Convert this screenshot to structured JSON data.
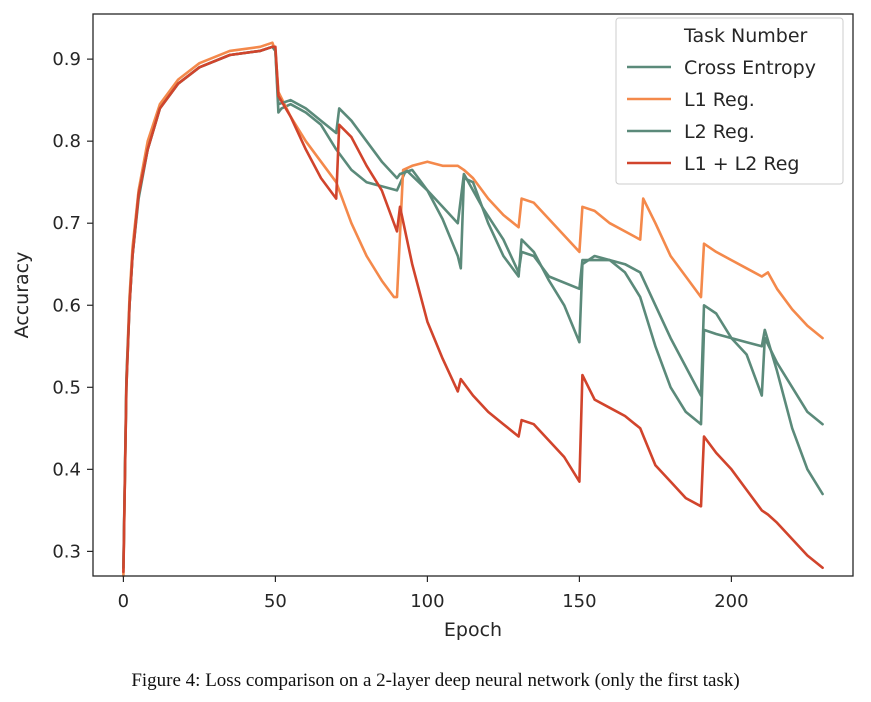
{
  "caption": "Figure 4: Loss comparison on a 2-layer deep neural network (only the first task)",
  "chart_data": {
    "type": "line",
    "title": "",
    "xlabel": "Epoch",
    "ylabel": "Accuracy",
    "xlim": [
      -10,
      240
    ],
    "ylim": [
      0.27,
      0.955
    ],
    "xticks": [
      0,
      50,
      100,
      150,
      200
    ],
    "yticks": [
      0.3,
      0.4,
      0.5,
      0.6,
      0.7,
      0.8,
      0.9
    ],
    "grid": false,
    "legend": {
      "placement": "top-right",
      "title": "Task Number"
    },
    "series": [
      {
        "name": "Cross Entropy",
        "color": "#5b8a7a",
        "points": [
          [
            0,
            0.28
          ],
          [
            1,
            0.5
          ],
          [
            2,
            0.6
          ],
          [
            3,
            0.66
          ],
          [
            5,
            0.73
          ],
          [
            8,
            0.79
          ],
          [
            12,
            0.84
          ],
          [
            18,
            0.87
          ],
          [
            25,
            0.89
          ],
          [
            35,
            0.905
          ],
          [
            45,
            0.91
          ],
          [
            49,
            0.915
          ],
          [
            50,
            0.91
          ],
          [
            51,
            0.835
          ],
          [
            52,
            0.84
          ],
          [
            55,
            0.845
          ],
          [
            60,
            0.835
          ],
          [
            65,
            0.82
          ],
          [
            70,
            0.79
          ],
          [
            75,
            0.765
          ],
          [
            80,
            0.75
          ],
          [
            90,
            0.74
          ],
          [
            93,
            0.765
          ],
          [
            100,
            0.74
          ],
          [
            105,
            0.72
          ],
          [
            110,
            0.7
          ],
          [
            112,
            0.76
          ],
          [
            118,
            0.72
          ],
          [
            125,
            0.68
          ],
          [
            130,
            0.64
          ],
          [
            131,
            0.665
          ],
          [
            135,
            0.66
          ],
          [
            140,
            0.635
          ],
          [
            150,
            0.62
          ],
          [
            151,
            0.655
          ],
          [
            160,
            0.655
          ],
          [
            165,
            0.65
          ],
          [
            170,
            0.64
          ],
          [
            175,
            0.6
          ],
          [
            180,
            0.56
          ],
          [
            190,
            0.49
          ],
          [
            191,
            0.6
          ],
          [
            195,
            0.59
          ],
          [
            200,
            0.56
          ],
          [
            205,
            0.54
          ],
          [
            210,
            0.49
          ],
          [
            211,
            0.56
          ],
          [
            215,
            0.53
          ],
          [
            220,
            0.5
          ],
          [
            225,
            0.47
          ],
          [
            230,
            0.455
          ]
        ]
      },
      {
        "name": "L1 Reg.",
        "color": "#f4894b",
        "points": [
          [
            0,
            0.27
          ],
          [
            1,
            0.51
          ],
          [
            2,
            0.61
          ],
          [
            3,
            0.67
          ],
          [
            5,
            0.74
          ],
          [
            8,
            0.8
          ],
          [
            12,
            0.845
          ],
          [
            18,
            0.875
          ],
          [
            25,
            0.895
          ],
          [
            35,
            0.91
          ],
          [
            45,
            0.915
          ],
          [
            49,
            0.92
          ],
          [
            50,
            0.91
          ],
          [
            51,
            0.86
          ],
          [
            55,
            0.83
          ],
          [
            60,
            0.8
          ],
          [
            65,
            0.775
          ],
          [
            70,
            0.75
          ],
          [
            75,
            0.7
          ],
          [
            80,
            0.66
          ],
          [
            85,
            0.63
          ],
          [
            89,
            0.61
          ],
          [
            90,
            0.61
          ],
          [
            92,
            0.765
          ],
          [
            95,
            0.77
          ],
          [
            100,
            0.775
          ],
          [
            105,
            0.77
          ],
          [
            110,
            0.77
          ],
          [
            112,
            0.765
          ],
          [
            115,
            0.755
          ],
          [
            120,
            0.73
          ],
          [
            125,
            0.71
          ],
          [
            130,
            0.695
          ],
          [
            131,
            0.73
          ],
          [
            135,
            0.725
          ],
          [
            140,
            0.705
          ],
          [
            145,
            0.685
          ],
          [
            150,
            0.665
          ],
          [
            151,
            0.72
          ],
          [
            155,
            0.715
          ],
          [
            160,
            0.7
          ],
          [
            165,
            0.69
          ],
          [
            170,
            0.68
          ],
          [
            171,
            0.73
          ],
          [
            175,
            0.7
          ],
          [
            180,
            0.66
          ],
          [
            185,
            0.635
          ],
          [
            190,
            0.61
          ],
          [
            191,
            0.675
          ],
          [
            195,
            0.665
          ],
          [
            200,
            0.655
          ],
          [
            205,
            0.645
          ],
          [
            210,
            0.635
          ],
          [
            212,
            0.64
          ],
          [
            215,
            0.62
          ],
          [
            220,
            0.595
          ],
          [
            225,
            0.575
          ],
          [
            230,
            0.56
          ]
        ]
      },
      {
        "name": "L2 Reg.",
        "color": "#5b8a7a",
        "points": [
          [
            0,
            0.28
          ],
          [
            1,
            0.51
          ],
          [
            2,
            0.6
          ],
          [
            3,
            0.66
          ],
          [
            5,
            0.735
          ],
          [
            8,
            0.79
          ],
          [
            12,
            0.84
          ],
          [
            18,
            0.87
          ],
          [
            25,
            0.89
          ],
          [
            35,
            0.905
          ],
          [
            45,
            0.91
          ],
          [
            49,
            0.915
          ],
          [
            50,
            0.91
          ],
          [
            51,
            0.845
          ],
          [
            55,
            0.85
          ],
          [
            60,
            0.84
          ],
          [
            65,
            0.825
          ],
          [
            70,
            0.81
          ],
          [
            71,
            0.84
          ],
          [
            75,
            0.825
          ],
          [
            80,
            0.8
          ],
          [
            85,
            0.775
          ],
          [
            90,
            0.755
          ],
          [
            91,
            0.76
          ],
          [
            95,
            0.765
          ],
          [
            100,
            0.74
          ],
          [
            105,
            0.705
          ],
          [
            110,
            0.66
          ],
          [
            111,
            0.645
          ],
          [
            112,
            0.755
          ],
          [
            115,
            0.75
          ],
          [
            120,
            0.7
          ],
          [
            125,
            0.66
          ],
          [
            130,
            0.635
          ],
          [
            131,
            0.68
          ],
          [
            135,
            0.665
          ],
          [
            140,
            0.63
          ],
          [
            145,
            0.6
          ],
          [
            150,
            0.555
          ],
          [
            151,
            0.65
          ],
          [
            155,
            0.66
          ],
          [
            160,
            0.655
          ],
          [
            165,
            0.64
          ],
          [
            170,
            0.61
          ],
          [
            175,
            0.55
          ],
          [
            180,
            0.5
          ],
          [
            185,
            0.47
          ],
          [
            190,
            0.455
          ],
          [
            191,
            0.57
          ],
          [
            195,
            0.565
          ],
          [
            200,
            0.56
          ],
          [
            205,
            0.555
          ],
          [
            210,
            0.55
          ],
          [
            211,
            0.57
          ],
          [
            215,
            0.52
          ],
          [
            220,
            0.45
          ],
          [
            225,
            0.4
          ],
          [
            230,
            0.37
          ]
        ]
      },
      {
        "name": "L1 + L2 Reg",
        "color": "#d1442c",
        "points": [
          [
            0,
            0.275
          ],
          [
            1,
            0.5
          ],
          [
            2,
            0.6
          ],
          [
            3,
            0.66
          ],
          [
            5,
            0.735
          ],
          [
            8,
            0.79
          ],
          [
            12,
            0.84
          ],
          [
            18,
            0.87
          ],
          [
            25,
            0.89
          ],
          [
            35,
            0.905
          ],
          [
            45,
            0.91
          ],
          [
            49,
            0.915
          ],
          [
            50,
            0.915
          ],
          [
            51,
            0.855
          ],
          [
            55,
            0.83
          ],
          [
            60,
            0.79
          ],
          [
            65,
            0.755
          ],
          [
            70,
            0.73
          ],
          [
            71,
            0.82
          ],
          [
            75,
            0.805
          ],
          [
            80,
            0.77
          ],
          [
            85,
            0.74
          ],
          [
            90,
            0.69
          ],
          [
            91,
            0.72
          ],
          [
            95,
            0.65
          ],
          [
            100,
            0.58
          ],
          [
            105,
            0.535
          ],
          [
            110,
            0.495
          ],
          [
            111,
            0.51
          ],
          [
            115,
            0.49
          ],
          [
            120,
            0.47
          ],
          [
            125,
            0.455
          ],
          [
            130,
            0.44
          ],
          [
            131,
            0.46
          ],
          [
            135,
            0.455
          ],
          [
            140,
            0.435
          ],
          [
            145,
            0.415
          ],
          [
            150,
            0.385
          ],
          [
            151,
            0.515
          ],
          [
            155,
            0.485
          ],
          [
            160,
            0.475
          ],
          [
            165,
            0.465
          ],
          [
            170,
            0.45
          ],
          [
            175,
            0.405
          ],
          [
            180,
            0.385
          ],
          [
            185,
            0.365
          ],
          [
            190,
            0.355
          ],
          [
            191,
            0.44
          ],
          [
            195,
            0.42
          ],
          [
            200,
            0.4
          ],
          [
            205,
            0.375
          ],
          [
            210,
            0.35
          ],
          [
            212,
            0.345
          ],
          [
            215,
            0.335
          ],
          [
            220,
            0.315
          ],
          [
            225,
            0.295
          ],
          [
            230,
            0.28
          ]
        ]
      }
    ]
  }
}
